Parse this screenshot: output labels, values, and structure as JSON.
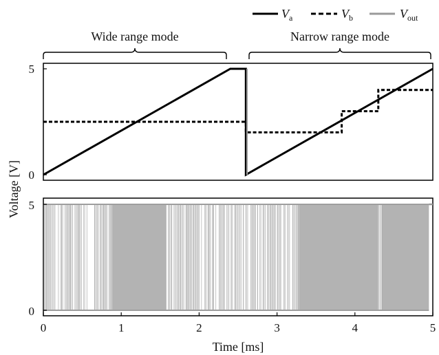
{
  "chart_data": [
    {
      "type": "line",
      "panel": "top",
      "ylabel": "Voltage [V]",
      "ylim": [
        0,
        5
      ],
      "yticks": [
        "5",
        "0"
      ],
      "xlim": [
        0,
        5
      ],
      "annotations": [
        {
          "text": "Wide range mode",
          "x_range": [
            0,
            2.4
          ]
        },
        {
          "text": "Narrow range mode",
          "x_range": [
            2.65,
            5
          ]
        }
      ],
      "series": [
        {
          "name": "V_a",
          "points": [
            [
              0,
              0
            ],
            [
              2.4,
              5
            ],
            [
              2.6,
              5
            ],
            [
              2.6,
              0
            ],
            [
              5,
              5
            ]
          ]
        },
        {
          "name": "V_b",
          "points": [
            [
              0,
              2.5
            ],
            [
              2.6,
              2.5
            ],
            [
              2.6,
              2.0
            ],
            [
              3.83,
              2.0
            ],
            [
              3.83,
              3.0
            ],
            [
              4.3,
              3.0
            ],
            [
              4.3,
              4.0
            ],
            [
              5,
              4.0
            ]
          ]
        }
      ]
    },
    {
      "type": "line",
      "panel": "bottom",
      "xlabel": "Time [ms]",
      "xlim": [
        0,
        5
      ],
      "ylim": [
        0,
        5
      ],
      "xticks": [
        "0",
        "1",
        "2",
        "3",
        "4",
        "5"
      ],
      "yticks": [
        "5",
        "0"
      ],
      "series": [
        {
          "name": "V_out",
          "description": "PWM-like switching between 0 and 5 V",
          "dense_ranges": [
            [
              0.88,
              1.58
            ],
            [
              3.28,
              4.3
            ],
            [
              4.35,
              4.95
            ]
          ],
          "high_after": 4.95
        }
      ]
    }
  ],
  "legend": [
    {
      "symbol": "V",
      "subscript": "a",
      "style": "solid",
      "color": "#000000"
    },
    {
      "symbol": "V",
      "subscript": "b",
      "style": "dashed",
      "color": "#000000"
    },
    {
      "symbol": "V",
      "subscript": "out",
      "style": "solid",
      "color": "#999999"
    }
  ],
  "colors": {
    "va": "#000000",
    "vb": "#000000",
    "vout": "#b3b3b3"
  }
}
